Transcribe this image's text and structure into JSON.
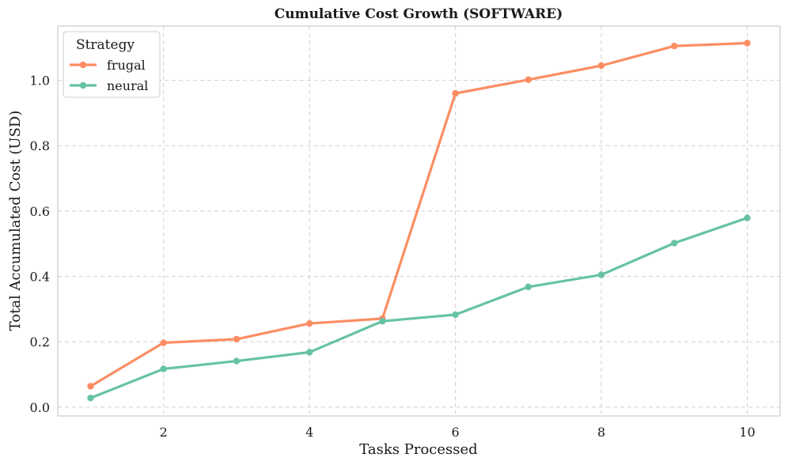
{
  "chart_data": {
    "type": "line",
    "title": "Cumulative Cost Growth (SOFTWARE)",
    "xlabel": "Tasks Processed",
    "ylabel": "Total Accumulated Cost (USD)",
    "x": [
      1,
      2,
      3,
      4,
      5,
      6,
      7,
      8,
      9,
      10
    ],
    "xlim": [
      0.55,
      10.45
    ],
    "ylim": [
      -0.027,
      1.166
    ],
    "xticks": [
      2,
      4,
      6,
      8,
      10
    ],
    "xtick_labels": [
      "2",
      "4",
      "6",
      "8",
      "10"
    ],
    "yticks": [
      0.0,
      0.2,
      0.4,
      0.6,
      0.8,
      1.0
    ],
    "ytick_labels": [
      "0.0",
      "0.2",
      "0.4",
      "0.6",
      "0.8",
      "1.0"
    ],
    "grid": true,
    "legend": {
      "title": "Strategy",
      "placement": "top-left"
    },
    "series": [
      {
        "name": "frugal",
        "color": "#fc8d62",
        "values": [
          0.064,
          0.197,
          0.208,
          0.256,
          0.271,
          0.96,
          1.002,
          1.045,
          1.105,
          1.114
        ]
      },
      {
        "name": "neural",
        "color": "#66c2a5",
        "values": [
          0.028,
          0.117,
          0.141,
          0.168,
          0.263,
          0.283,
          0.368,
          0.405,
          0.502,
          0.579
        ]
      }
    ]
  }
}
